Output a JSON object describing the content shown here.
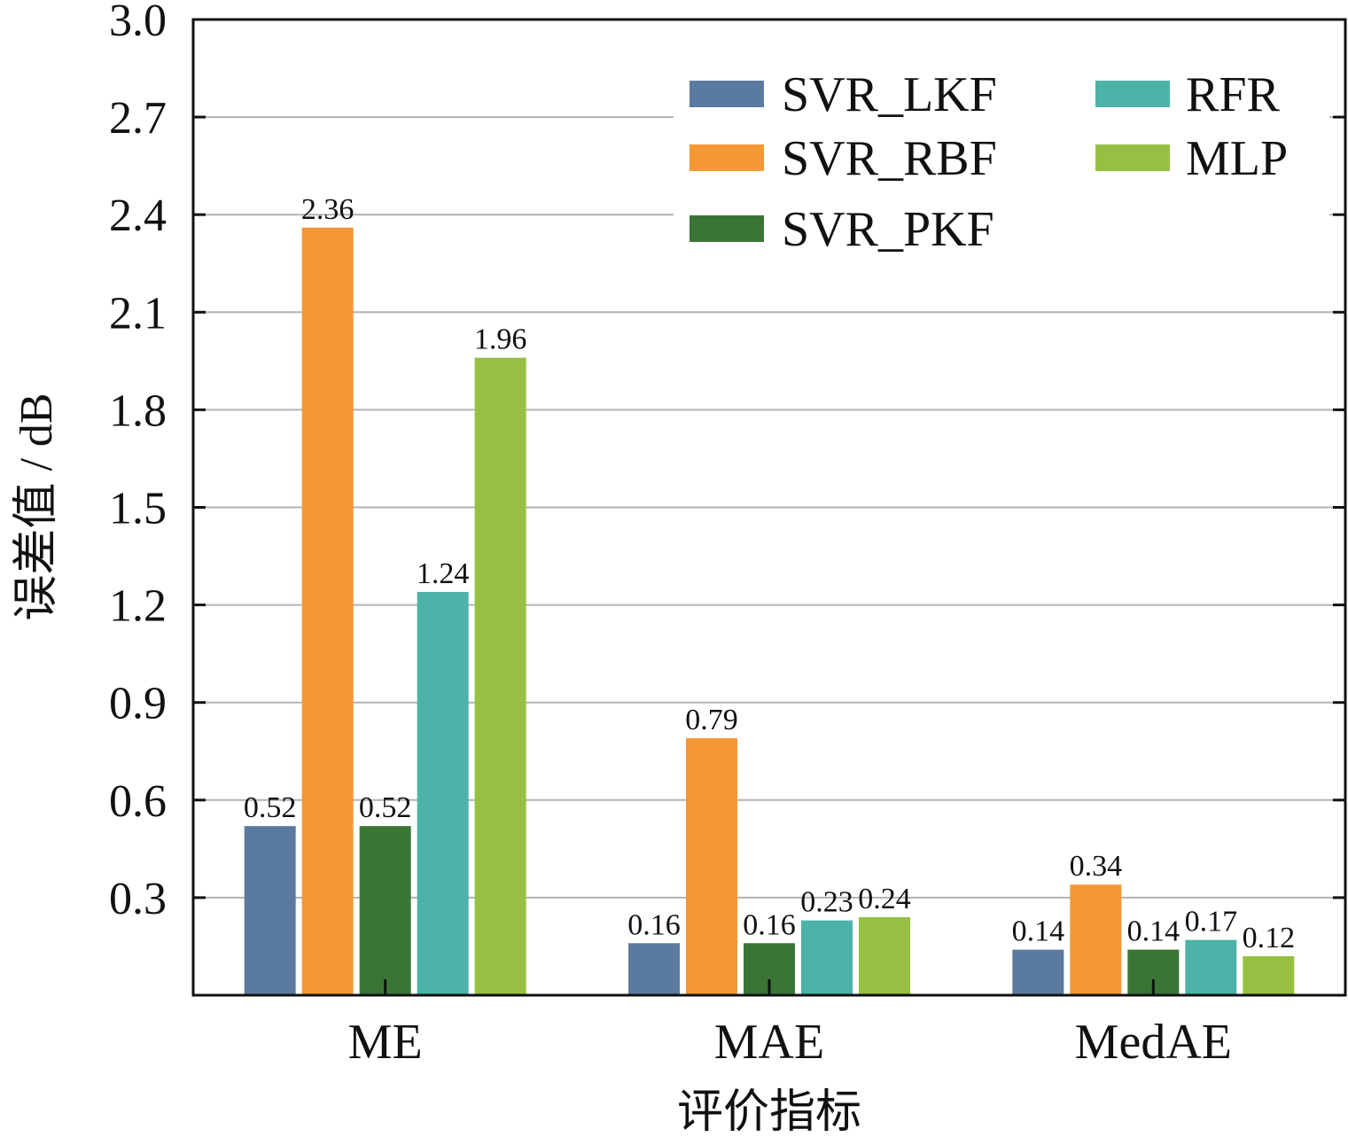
{
  "chart_data": {
    "type": "bar",
    "categories": [
      "ME",
      "MAE",
      "MedAE"
    ],
    "series": [
      {
        "name": "SVR_LKF",
        "values": [
          0.52,
          0.16,
          0.14
        ],
        "color": "#5b7aa0"
      },
      {
        "name": "SVR_RBF",
        "values": [
          2.36,
          0.79,
          0.34
        ],
        "color": "#f39832"
      },
      {
        "name": "SVR_PKF",
        "values": [
          0.52,
          0.16,
          0.14
        ],
        "color": "#3a7536"
      },
      {
        "name": "RFR",
        "values": [
          1.24,
          0.23,
          0.17
        ],
        "color": "#4cb3a8"
      },
      {
        "name": "MLP",
        "values": [
          1.96,
          0.24,
          0.12
        ],
        "color": "#97c043"
      }
    ],
    "xlabel": "评价指标",
    "ylabel": "误差值 / dB",
    "ylim": [
      0,
      3.0
    ],
    "yticks": [
      "0.3",
      "0.6",
      "0.9",
      "1.2",
      "1.5",
      "1.8",
      "2.1",
      "2.4",
      "2.7",
      "3.0"
    ],
    "data_labels": [
      [
        "0.52",
        "0.16",
        "0.14"
      ],
      [
        "2.36",
        "0.79",
        "0.34"
      ],
      [
        "0.52",
        "0.16",
        "0.14"
      ],
      [
        "1.24",
        "0.23",
        "0.17"
      ],
      [
        "1.96",
        "0.24",
        "0.12"
      ]
    ],
    "grid": true,
    "legend_position": "top-right"
  }
}
